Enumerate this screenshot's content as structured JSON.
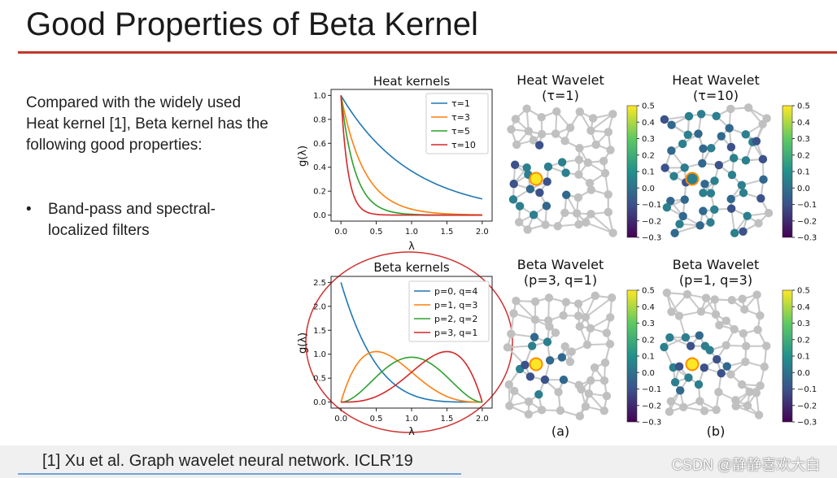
{
  "slide": {
    "title": "Good Properties of Beta Kernel",
    "body": "Compared with the widely used Heat kernel [1], Beta kernel has the following good properties:",
    "bullet_symbol": "•",
    "bullet": "Band-pass and spectral-localized filters",
    "reference": "[1] Xu et  al. Graph wavelet neural network. ICLR’19",
    "watermark": "CSDN @静静喜欢大白"
  },
  "wavelets": {
    "heat1_title": "Heat Wavelet",
    "heat1_sub": "(τ=1)",
    "heat10_title": "Heat Wavelet",
    "heat10_sub": "(τ=10)",
    "beta31_title": "Beta Wavelet",
    "beta31_sub": "(p=3, q=1)",
    "beta13_title": "Beta Wavelet",
    "beta13_sub": "(p=1, q=3)",
    "label_a": "(a)",
    "label_b": "(b)",
    "colorbar_ticks": [
      "0.5",
      "0.4",
      "0.3",
      "0.2",
      "0.1",
      "0.0",
      "−0.1",
      "−0.2",
      "−0.3"
    ]
  },
  "chart_data": [
    {
      "type": "line",
      "title": "Heat kernels",
      "xlabel": "λ",
      "ylabel": "g(λ)",
      "xlim": [
        0,
        2.0
      ],
      "ylim": [
        0,
        1.0
      ],
      "xticks": [
        "0.0",
        "0.5",
        "1.0",
        "1.5",
        "2.0"
      ],
      "yticks": [
        "0.0",
        "0.2",
        "0.4",
        "0.6",
        "0.8",
        "1.0"
      ],
      "legend_position": "top-right",
      "series": [
        {
          "name": "τ=1",
          "formula": "exp(-tau*x)",
          "tau": 1,
          "color": "#1f77b4"
        },
        {
          "name": "τ=3",
          "formula": "exp(-tau*x)",
          "tau": 3,
          "color": "#ff7f0e"
        },
        {
          "name": "τ=5",
          "formula": "exp(-tau*x)",
          "tau": 5,
          "color": "#2ca02c"
        },
        {
          "name": "τ=10",
          "formula": "exp(-tau*x)",
          "tau": 10,
          "color": "#d62728"
        }
      ]
    },
    {
      "type": "line",
      "title": "Beta kernels",
      "xlabel": "λ",
      "ylabel": "g(λ)",
      "xlim": [
        0,
        2.0
      ],
      "ylim": [
        0,
        2.5
      ],
      "xticks": [
        "0.0",
        "0.5",
        "1.0",
        "1.5",
        "2.0"
      ],
      "yticks": [
        "0.0",
        "0.5",
        "1.0",
        "1.5",
        "2.0",
        "2.5"
      ],
      "legend_position": "top-right",
      "series": [
        {
          "name": "p=0, q=4",
          "p": 0,
          "q": 4,
          "color": "#1f77b4"
        },
        {
          "name": "p=1, q=3",
          "p": 1,
          "q": 3,
          "color": "#ff7f0e"
        },
        {
          "name": "p=2, q=2",
          "p": 2,
          "q": 2,
          "color": "#2ca02c"
        },
        {
          "name": "p=3, q=1",
          "p": 3,
          "q": 1,
          "color": "#d62728"
        }
      ]
    }
  ]
}
